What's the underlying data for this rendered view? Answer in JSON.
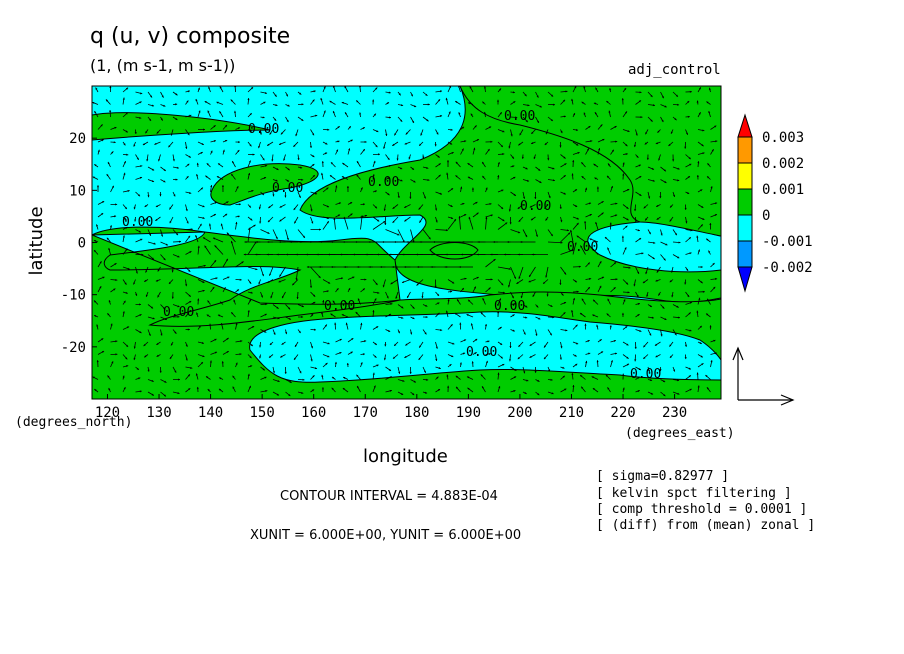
{
  "chart_data": {
    "type": "contour-vector",
    "title": "q (u, v) composite",
    "subtitle": "(1, (m s-1, m s-1))",
    "tag": "adj_control",
    "xlabel": "longitude",
    "ylabel": "latitude",
    "x_unit_label": "(degrees_east)",
    "y_unit_label": "(degrees_north)",
    "xlim": [
      117,
      239
    ],
    "ylim": [
      -30,
      30
    ],
    "x_ticks": [
      120,
      130,
      140,
      150,
      160,
      170,
      180,
      190,
      200,
      210,
      220,
      230
    ],
    "y_ticks": [
      -20,
      -10,
      0,
      10,
      20
    ],
    "contour_labels": [
      "0.00",
      "0.00",
      "0.00",
      "0.00",
      "0.00",
      "0.00",
      "0.00",
      "0.00",
      "0.00",
      "0.00",
      "0.00",
      "0.00",
      "0.00"
    ],
    "colorbar": {
      "levels": [
        "0.003",
        "0.002",
        "0.001",
        "0",
        "-0.001",
        "-0.002"
      ],
      "colors": [
        "#ff0000",
        "#ff9900",
        "#ffff00",
        "#00cc00",
        "#00ffff",
        "#0099ff",
        "#0000ff"
      ]
    },
    "field_colors": {
      "positive": "#00cc00",
      "negative": "#00ffff"
    },
    "vector_reference": {
      "x_unit": "6.000E+00",
      "y_unit": "6.000E+00"
    },
    "annotations": {
      "contour_interval": "CONTOUR INTERVAL = 4.883E-04",
      "units": "XUNIT = 6.000E+00, YUNIT = 6.000E+00"
    },
    "notes": [
      "[ sigma=0.82977 ]",
      "[ kelvin spct filtering ]",
      "[ comp threshold = 0.0001 ]",
      "[ (diff) from (mean) zonal ]"
    ]
  }
}
